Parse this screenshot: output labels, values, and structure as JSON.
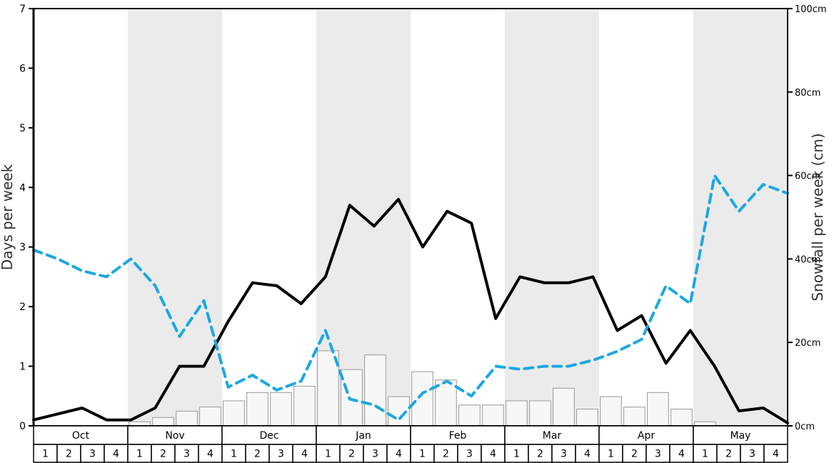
{
  "chart_data": {
    "type": "combo-line-bar",
    "title": "",
    "left_axis": {
      "label": "Days per week",
      "min": 0,
      "max": 7,
      "ticks": [
        0,
        1,
        2,
        3,
        4,
        5,
        6,
        7
      ]
    },
    "right_axis": {
      "label": "Snowfall per week (cm)",
      "min": 0,
      "max": 100,
      "ticks": [
        0,
        20,
        40,
        60,
        80,
        100
      ],
      "tick_labels": [
        "0cm",
        "20cm",
        "40cm",
        "60cm",
        "80cm",
        "100cm"
      ]
    },
    "months": [
      "Oct",
      "Nov",
      "Dec",
      "Jan",
      "Feb",
      "Mar",
      "Apr",
      "May"
    ],
    "week_labels": [
      "1",
      "2",
      "3",
      "4"
    ],
    "shaded_months": [
      "Nov",
      "Jan",
      "Mar",
      "May"
    ],
    "colors": {
      "band": "#ebebeb",
      "snowy_days_line": "#000000",
      "dashed_line": "#1ba8e0",
      "bar_fill": "#f7f7f7",
      "bar_border": "#999999",
      "frame": "#000000"
    },
    "series": [
      {
        "name": "snowy-days-per-week",
        "type": "line",
        "dash": false,
        "axis": "left",
        "color": "#000000",
        "values": [
          0.1,
          0.2,
          0.3,
          0.1,
          0.1,
          0.3,
          1.0,
          1.0,
          1.75,
          2.4,
          2.35,
          2.05,
          2.5,
          3.7,
          3.35,
          3.8,
          3.0,
          3.6,
          3.4,
          1.8,
          2.5,
          2.4,
          2.4,
          2.5,
          1.6,
          1.85,
          1.05,
          1.6,
          1.0,
          0.25,
          0.3,
          0.05
        ]
      },
      {
        "name": "days-per-week-dashed",
        "type": "line",
        "dash": true,
        "axis": "left",
        "color": "#1ba8e0",
        "values": [
          2.95,
          2.8,
          2.6,
          2.5,
          2.8,
          2.35,
          1.5,
          2.1,
          0.65,
          0.85,
          0.6,
          0.75,
          1.6,
          0.45,
          0.35,
          0.1,
          0.55,
          0.75,
          0.5,
          1.0,
          0.95,
          1.0,
          1.0,
          1.1,
          1.25,
          1.45,
          2.35,
          2.05,
          4.2,
          3.6,
          4.05,
          3.9
        ]
      },
      {
        "name": "snowfall-per-week-cm",
        "type": "bar",
        "axis": "right",
        "color": "#f7f7f7",
        "border": "#999999",
        "values": [
          0,
          0,
          0,
          0,
          1,
          2,
          3.5,
          4.5,
          6,
          8,
          8,
          9.5,
          18,
          13.5,
          17,
          7,
          13,
          11,
          5,
          5,
          6,
          6,
          9,
          4,
          7,
          4.5,
          8,
          4,
          1,
          0,
          0,
          0
        ]
      }
    ]
  }
}
